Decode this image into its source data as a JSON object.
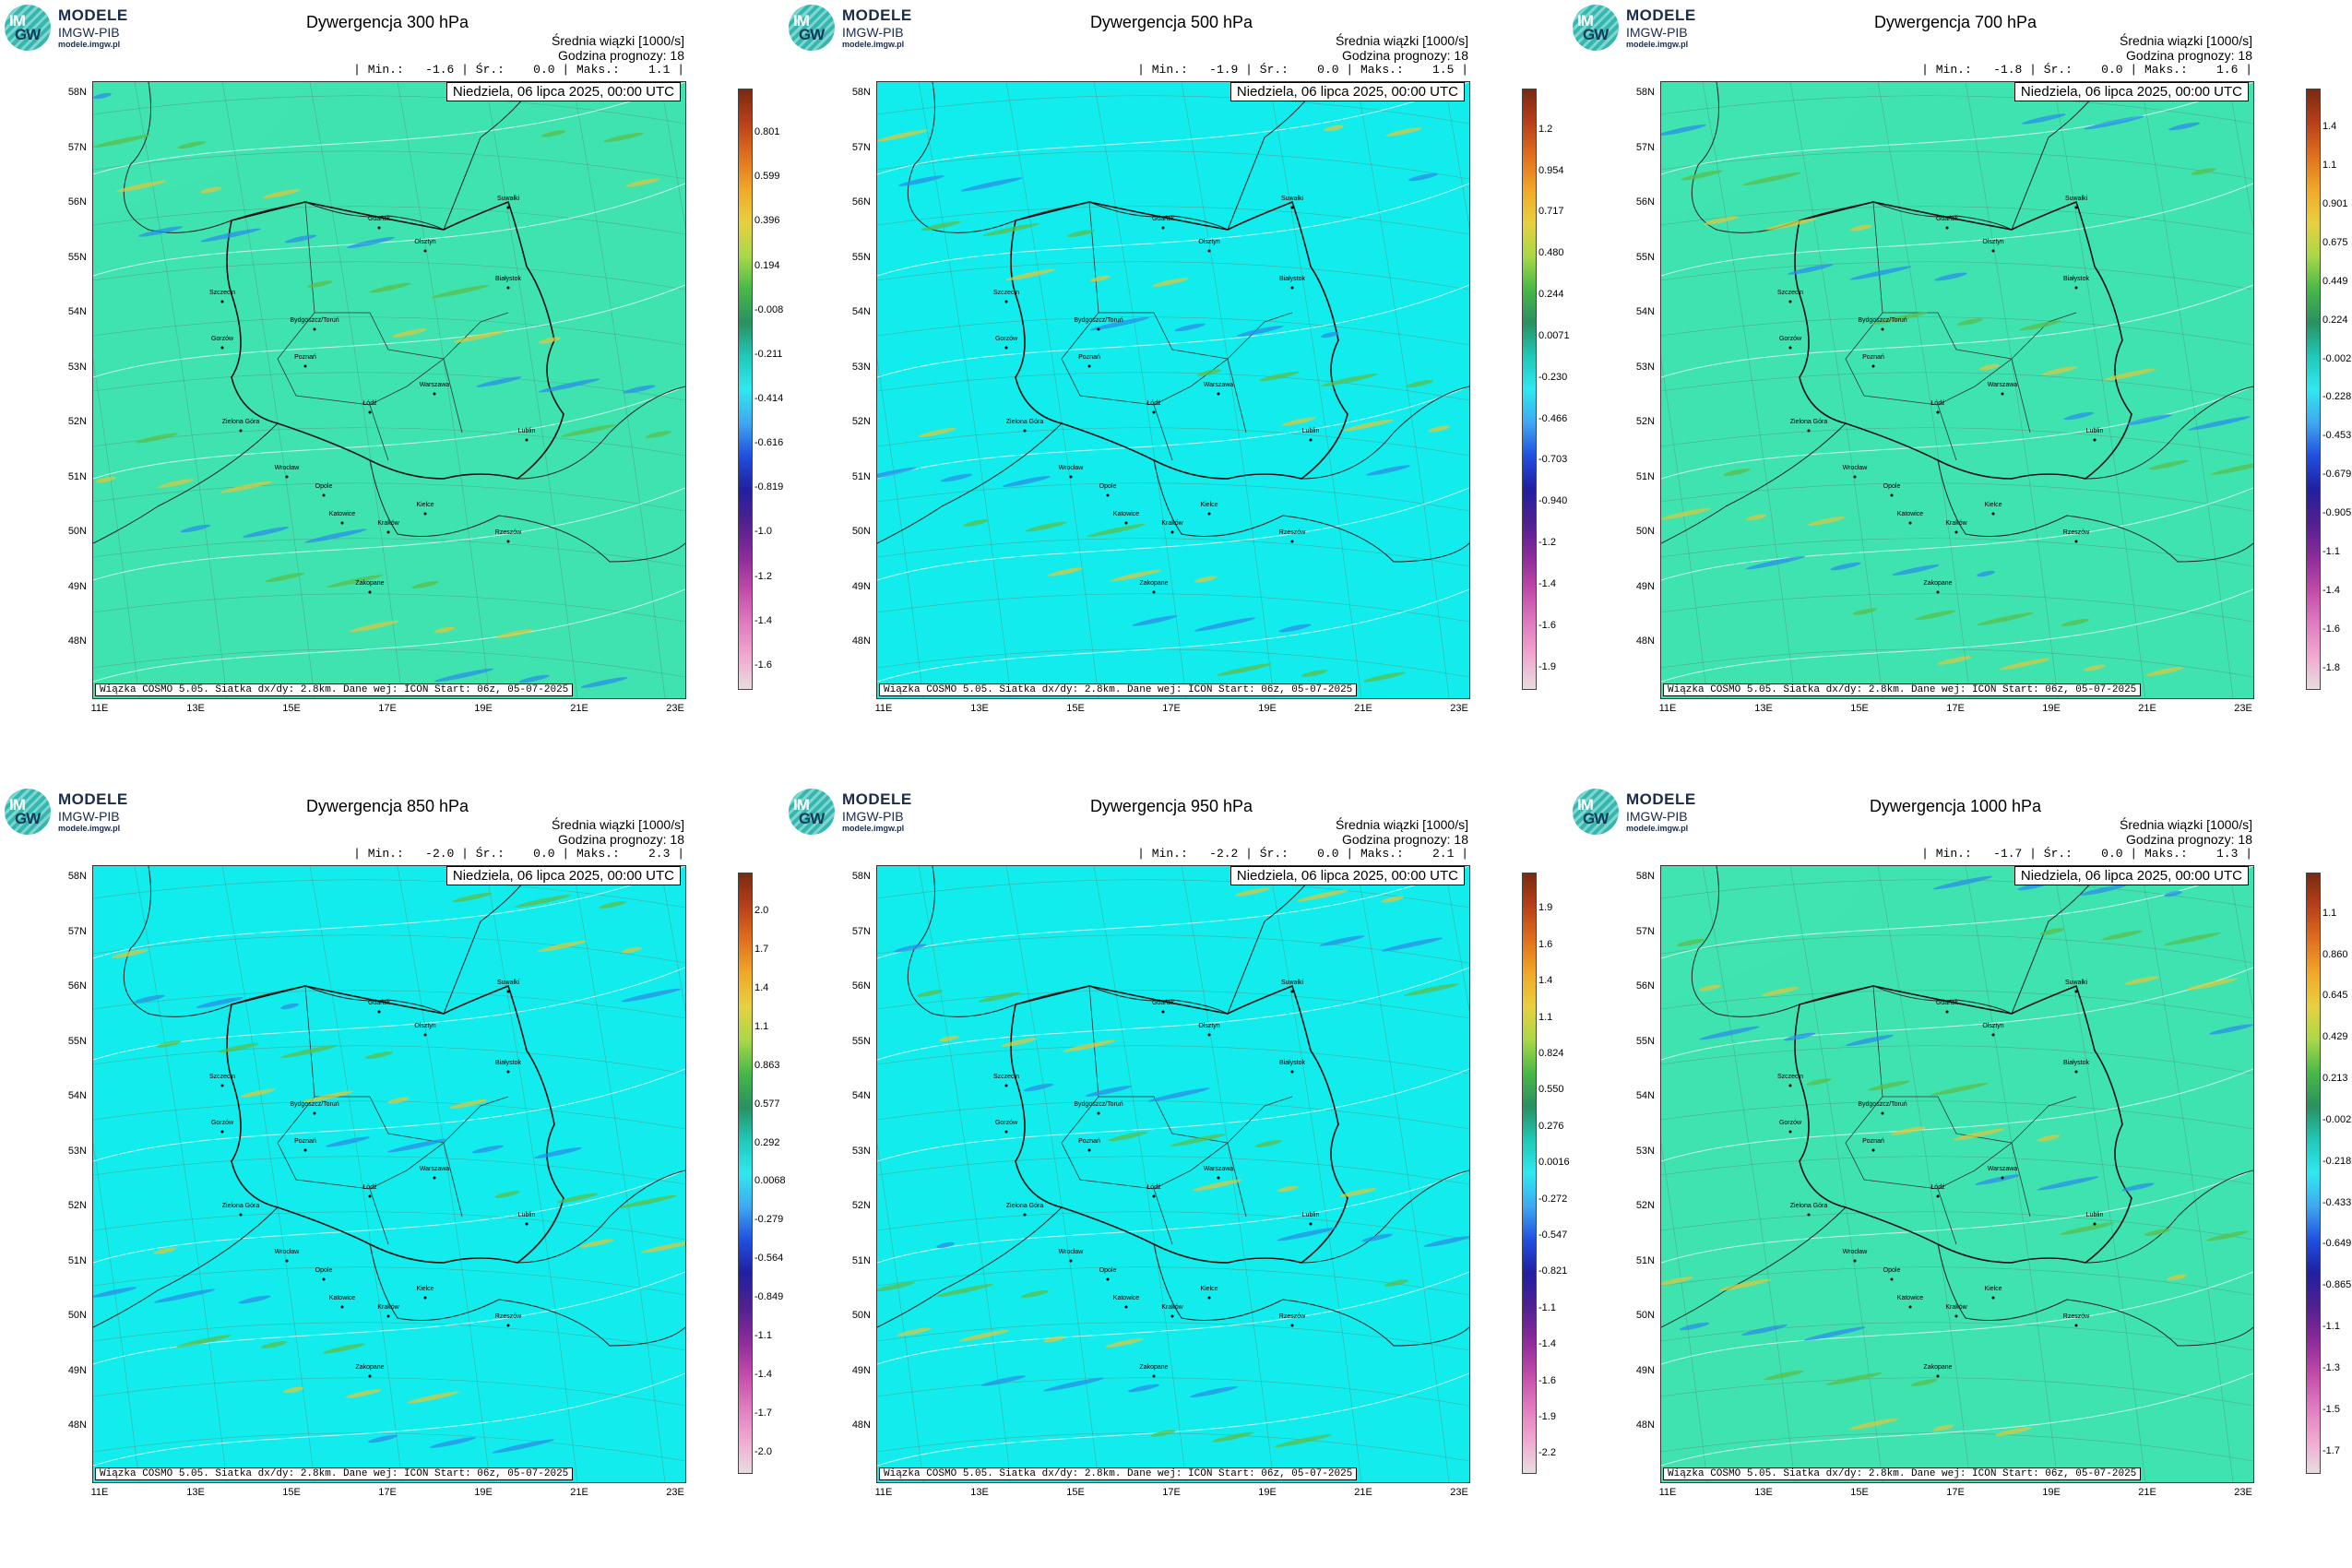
{
  "logo": {
    "mark_l1": "IM",
    "mark_l2": "GW",
    "name": "MODELE",
    "org": "IMGW-PIB",
    "url": "modele.imgw.pl"
  },
  "common": {
    "subtitle": "Średnia wiązki [1000/s]",
    "forecast_hour": "Godzina prognozy: 18",
    "date": "Niedziela, 06 lipca 2025, 00:00 UTC",
    "footer": "Wiązka COSMO 5.05. Siatka dx/dy: 2.8km. Dane wej: ICON Start: 06z, 05-07-2025",
    "x_ticks": [
      "11E",
      "13E",
      "15E",
      "17E",
      "19E",
      "21E",
      "23E"
    ],
    "y_ticks": [
      "58N",
      "57N",
      "56N",
      "55N",
      "54N",
      "53N",
      "52N",
      "51N",
      "50N",
      "49N",
      "48N"
    ],
    "cities": [
      "Gdańsk",
      "Olsztyn",
      "Suwałki",
      "Białystok",
      "Szczecin",
      "Bydgoszcz/Toruń",
      "Gorzów",
      "Poznań",
      "Warszawa",
      "Zielona Góra",
      "Łódź",
      "Lublin",
      "Wrocław",
      "Opole",
      "Kielce",
      "Katowice",
      "Kraków",
      "Rzeszów",
      "Zakopane"
    ]
  },
  "panels": [
    {
      "title": "Dywergencja 300 hPa",
      "stats": "| Min.:   -1.6 | Śr.:    0.0 | Maks.:    1.1 |",
      "min": -1.6,
      "mean": 0.0,
      "max": 1.1,
      "bg": "#3fe3b0",
      "colorbar": [
        "0.801",
        "0.599",
        "0.396",
        "0.194",
        "-0.008",
        "-0.211",
        "-0.414",
        "-0.616",
        "-0.819",
        "-1.0",
        "-1.2",
        "-1.4",
        "-1.6"
      ]
    },
    {
      "title": "Dywergencja 500 hPa",
      "stats": "| Min.:   -1.9 | Śr.:    0.0 | Maks.:    1.5 |",
      "min": -1.9,
      "mean": 0.0,
      "max": 1.5,
      "bg": "#12ecec",
      "colorbar": [
        "1.2",
        "0.954",
        "0.717",
        "0.480",
        "0.244",
        "0.0071",
        "-0.230",
        "-0.466",
        "-0.703",
        "-0.940",
        "-1.2",
        "-1.4",
        "-1.6",
        "-1.9"
      ]
    },
    {
      "title": "Dywergencja 700 hPa",
      "stats": "| Min.:   -1.8 | Śr.:    0.0 | Maks.:    1.6 |",
      "min": -1.8,
      "mean": 0.0,
      "max": 1.6,
      "bg": "#3fe3b0",
      "colorbar": [
        "1.4",
        "1.1",
        "0.901",
        "0.675",
        "0.449",
        "0.224",
        "-0.002",
        "-0.228",
        "-0.453",
        "-0.679",
        "-0.905",
        "-1.1",
        "-1.4",
        "-1.6",
        "-1.8"
      ]
    },
    {
      "title": "Dywergencja 850 hPa",
      "stats": "| Min.:   -2.0 | Śr.:    0.0 | Maks.:    2.3 |",
      "min": -2.0,
      "mean": 0.0,
      "max": 2.3,
      "bg": "#12ecec",
      "colorbar": [
        "2.0",
        "1.7",
        "1.4",
        "1.1",
        "0.863",
        "0.577",
        "0.292",
        "0.0068",
        "-0.279",
        "-0.564",
        "-0.849",
        "-1.1",
        "-1.4",
        "-1.7",
        "-2.0"
      ]
    },
    {
      "title": "Dywergencja 950 hPa",
      "stats": "| Min.:   -2.2 | Śr.:    0.0 | Maks.:    2.1 |",
      "min": -2.2,
      "mean": 0.0,
      "max": 2.1,
      "bg": "#12ecec",
      "colorbar": [
        "1.9",
        "1.6",
        "1.4",
        "1.1",
        "0.824",
        "0.550",
        "0.276",
        "0.0016",
        "-0.272",
        "-0.547",
        "-0.821",
        "-1.1",
        "-1.4",
        "-1.6",
        "-1.9",
        "-2.2"
      ]
    },
    {
      "title": "Dywergencja 1000 hPa",
      "stats": "| Min.:   -1.7 | Śr.:    0.0 | Maks.:    1.3 |",
      "min": -1.7,
      "mean": 0.0,
      "max": 1.3,
      "bg": "#3fe3b0",
      "colorbar": [
        "1.1",
        "0.860",
        "0.645",
        "0.429",
        "0.213",
        "-0.002",
        "-0.218",
        "-0.433",
        "-0.649",
        "-0.865",
        "-1.1",
        "-1.3",
        "-1.5",
        "-1.7"
      ]
    }
  ]
}
